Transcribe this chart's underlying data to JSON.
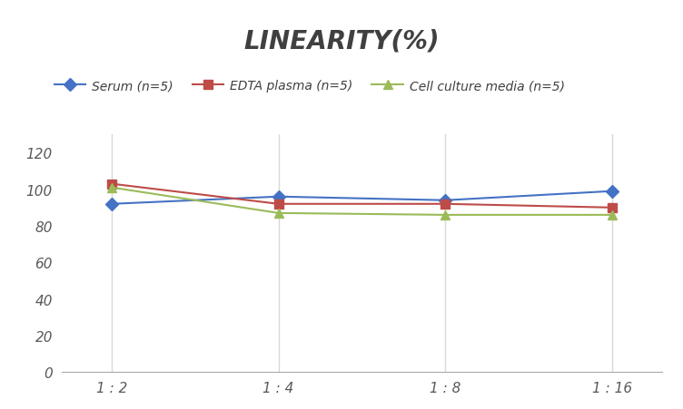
{
  "title": "LINEARITY(%)",
  "x_labels": [
    "1 : 2",
    "1 : 4",
    "1 : 8",
    "1 : 16"
  ],
  "x_positions": [
    0,
    1,
    2,
    3
  ],
  "series": [
    {
      "label": "Serum (n=5)",
      "values": [
        92,
        96,
        94,
        99
      ],
      "color": "#4472C4",
      "marker": "D",
      "marker_color": "#4472C4"
    },
    {
      "label": "EDTA plasma (n=5)",
      "values": [
        103,
        92,
        92,
        90
      ],
      "color": "#BE4B48",
      "marker": "s",
      "marker_color": "#BE4B48"
    },
    {
      "label": "Cell culture media (n=5)",
      "values": [
        101,
        87,
        86,
        86
      ],
      "color": "#9BBB59",
      "marker": "^",
      "marker_color": "#9BBB59"
    }
  ],
  "ylim": [
    0,
    130
  ],
  "yticks": [
    0,
    20,
    40,
    60,
    80,
    100,
    120
  ],
  "background_color": "#FFFFFF",
  "grid_color": "#D8D8D8",
  "title_fontsize": 20,
  "legend_fontsize": 10,
  "tick_fontsize": 11
}
